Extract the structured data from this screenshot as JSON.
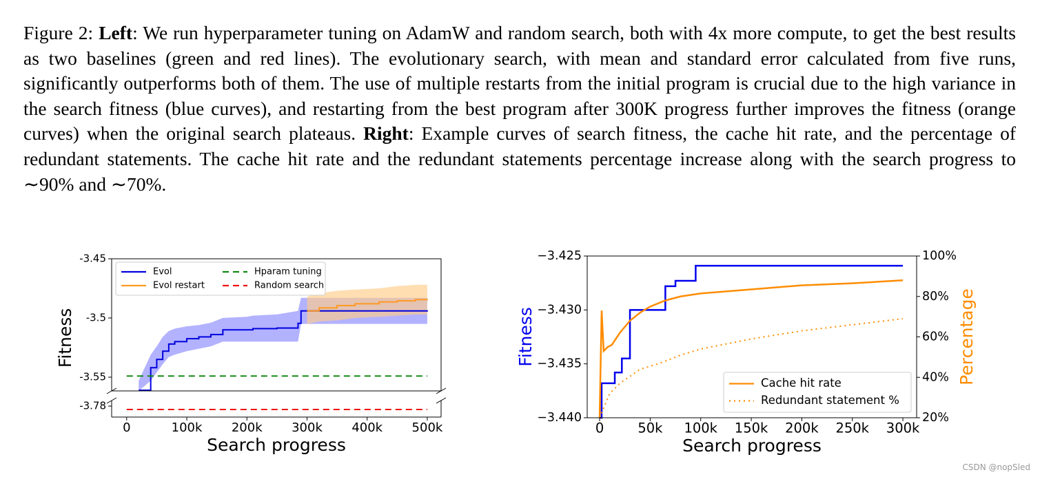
{
  "caption": {
    "label": "Figure 2:",
    "left_label": "Left",
    "left_text": ": We run hyperparameter tuning on AdamW and random search, both with 4x more compute, to get the best results as two baselines (green and red lines). The evolutionary search, with mean and standard error calculated from five runs, significantly outperforms both of them. The use of multiple restarts from the initial program is crucial due to the high variance in the search fitness (blue curves), and restarting from the best program after 300K progress further improves the fitness (orange curves) when the original search plateaus.",
    "right_label": "Right",
    "right_text": ": Example curves of search fitness, the cache hit rate, and the percentage of redundant statements. The cache hit rate and the redundant statements percentage increase along with the search progress to ∼90% and ∼70%."
  },
  "watermark": "CSDN @nopSled",
  "chart_data": [
    {
      "type": "line",
      "xlabel": "Search progress",
      "ylabel": "Fitness",
      "ylabel_color": "#000000",
      "xlim": [
        -25000,
        523000
      ],
      "xticks": [
        0,
        {
          "value": 100000,
          "label": "100k"
        },
        {
          "value": 200000,
          "label": "200k"
        },
        {
          "value": 300000,
          "label": "300k"
        },
        {
          "value": 400000,
          "label": "400k"
        },
        {
          "value": 500000,
          "label": "500k"
        }
      ],
      "ylim": [
        -3.5616,
        -3.45
      ],
      "yticks": [
        -3.45,
        -3.5,
        -3.55
      ],
      "ylim_lower": [
        -3.7893,
        -3.7753
      ],
      "yticks_lower": [
        -3.78
      ],
      "legend": "upper left",
      "legend_columns": 2,
      "series": [
        {
          "name": "Evol",
          "color": "#0000dd",
          "style": "solid",
          "step": true,
          "x": [
            20000,
            40000,
            50000,
            60000,
            70000,
            80000,
            100000,
            120000,
            140000,
            160000,
            200000,
            210000,
            250000,
            285000,
            290000,
            500000
          ],
          "values": [
            -3.561,
            -3.542,
            -3.535,
            -3.528,
            -3.522,
            -3.52,
            -3.5175,
            -3.516,
            -3.514,
            -3.51,
            -3.51,
            -3.509,
            -3.5085,
            -3.5045,
            -3.494,
            -3.4935
          ],
          "band_upper": [
            -3.553,
            -3.531,
            -3.524,
            -3.516,
            -3.511,
            -3.509,
            -3.507,
            -3.506,
            -3.504,
            -3.5,
            -3.499,
            -3.498,
            -3.497,
            -3.494,
            -3.483,
            -3.483
          ],
          "band_lower": [
            -3.5616,
            -3.553,
            -3.546,
            -3.539,
            -3.533,
            -3.531,
            -3.528,
            -3.526,
            -3.524,
            -3.52,
            -3.52,
            -3.52,
            -3.52,
            -3.52,
            -3.505,
            -3.505
          ],
          "band_color": "#8888ff"
        },
        {
          "name": "Evol restart",
          "color": "#ff9922",
          "style": "solid",
          "step": true,
          "x": [
            300000,
            320000,
            350000,
            380000,
            420000,
            450000,
            480000,
            500000
          ],
          "values": [
            -3.494,
            -3.4915,
            -3.4895,
            -3.488,
            -3.4865,
            -3.4855,
            -3.4845,
            -3.484
          ],
          "band_upper": [
            -3.482,
            -3.479,
            -3.477,
            -3.476,
            -3.475,
            -3.473,
            -3.472,
            -3.472
          ],
          "band_lower": [
            -3.505,
            -3.503,
            -3.502,
            -3.5,
            -3.499,
            -3.498,
            -3.497,
            -3.497
          ],
          "band_color": "#ffcc88"
        },
        {
          "name": "Hparam tuning",
          "color": "#118811",
          "style": "dashed",
          "x": [
            0,
            500000
          ],
          "values": [
            -3.549,
            -3.549
          ]
        },
        {
          "name": "Random search",
          "color": "#ee1111",
          "style": "dashed",
          "axis": "lower",
          "x": [
            0,
            500000
          ],
          "values": [
            -3.7829,
            -3.7829
          ]
        }
      ]
    },
    {
      "type": "line",
      "xlabel": "Search progress",
      "ylabel": "Fitness",
      "ylabel_color": "#0000ee",
      "y2label": "Percentage",
      "y2label_color": "#ff8c00",
      "xlim": [
        -12300,
        313600
      ],
      "xticks": [
        0,
        {
          "value": 50000,
          "label": "50k"
        },
        {
          "value": 100000,
          "label": "100k"
        },
        {
          "value": 150000,
          "label": "150k"
        },
        {
          "value": 200000,
          "label": "200k"
        },
        {
          "value": 250000,
          "label": "250k"
        },
        {
          "value": 300000,
          "label": "300k"
        }
      ],
      "ylim": [
        -3.44,
        -3.425
      ],
      "yticks": [
        {
          "value": -3.425,
          "label": "−3.425"
        },
        {
          "value": -3.43,
          "label": "−3.430"
        },
        {
          "value": -3.435,
          "label": "−3.435"
        },
        {
          "value": -3.44,
          "label": "−3.440"
        }
      ],
      "y2lim": [
        20,
        100
      ],
      "y2ticks": [
        {
          "value": 20,
          "label": "20%"
        },
        {
          "value": 40,
          "label": "40%"
        },
        {
          "value": 60,
          "label": "60%"
        },
        {
          "value": 80,
          "label": "80%"
        },
        {
          "value": 100,
          "label": "100%"
        }
      ],
      "legend": "lower right",
      "legend_columns": 1,
      "series": [
        {
          "color": "#0000ee",
          "style": "solid",
          "step": true,
          "width": 2.5,
          "x": [
            0,
            2000,
            15000,
            22000,
            30000,
            65000,
            75000,
            95000,
            300000
          ],
          "values": [
            -3.44,
            -3.4368,
            -3.4358,
            -3.4345,
            -3.43,
            -3.4278,
            -3.4273,
            -3.4259,
            -3.4259
          ]
        },
        {
          "name": "Cache hit rate",
          "color": "#ff8c00",
          "style": "solid",
          "axis": "y2",
          "width": 2.5,
          "x": [
            0,
            2000,
            4000,
            8000,
            12000,
            20000,
            30000,
            40000,
            50000,
            65000,
            80000,
            100000,
            150000,
            200000,
            250000,
            300000
          ],
          "values": [
            20,
            73,
            53,
            55,
            56,
            62,
            68,
            72,
            75,
            78,
            80,
            81.5,
            83.5,
            85.5,
            86.5,
            88
          ]
        },
        {
          "name": "Redundant statement %",
          "color": "#ff8c00",
          "style": "dotted",
          "axis": "y2",
          "width": 2,
          "x": [
            0,
            10000,
            20000,
            40000,
            60000,
            80000,
            100000,
            150000,
            200000,
            250000,
            300000
          ],
          "values": [
            20,
            32,
            37,
            44,
            47,
            51,
            54,
            59,
            63,
            66,
            69
          ]
        }
      ]
    }
  ]
}
